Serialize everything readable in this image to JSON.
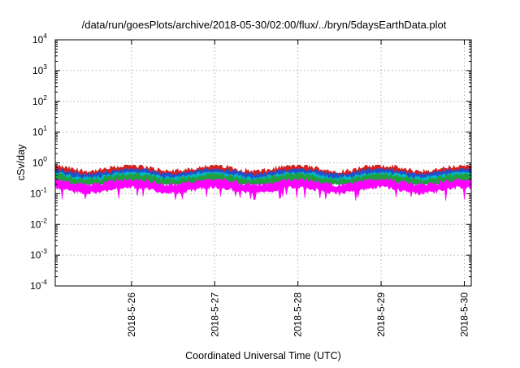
{
  "chart_data": {
    "type": "area",
    "title": "/data/run/goesPlots/archive/2018-05-30/02:00/flux/../bryn/5daysEarthData.plot",
    "xlabel": "Coordinated Universal Time (UTC)",
    "ylabel": "cSv/day",
    "y_scale": "log",
    "ylim": [
      0.0001,
      10000
    ],
    "y_ticks": [
      {
        "base": "10",
        "exp": "-4"
      },
      {
        "base": "10",
        "exp": "-3"
      },
      {
        "base": "10",
        "exp": "-2"
      },
      {
        "base": "10",
        "exp": "-1"
      },
      {
        "base": "10",
        "exp": "0"
      },
      {
        "base": "10",
        "exp": "1"
      },
      {
        "base": "10",
        "exp": "2"
      },
      {
        "base": "10",
        "exp": "3"
      },
      {
        "base": "10",
        "exp": "4"
      }
    ],
    "xlim": [
      "2018-05-25 02:00",
      "2018-05-30 02:00"
    ],
    "x_ticks": [
      "2018-5-26",
      "2018-5-27",
      "2018-5-28",
      "2018-5-29",
      "2018-5-30"
    ],
    "grid": true,
    "legend": "none",
    "series": [
      {
        "color": "#d62020",
        "typical": 0.55,
        "peak": 0.85,
        "min": 0.35
      },
      {
        "color": "#2050d0",
        "typical": 0.45,
        "peak": 0.65,
        "min": 0.28
      },
      {
        "color": "#00b8c0",
        "typical": 0.35,
        "peak": 0.5,
        "min": 0.22
      },
      {
        "color": "#20a040",
        "typical": 0.3,
        "peak": 0.45,
        "min": 0.2
      },
      {
        "color": "#ff00ff",
        "typical": 0.2,
        "peak": 0.3,
        "min": 0.055
      }
    ]
  }
}
